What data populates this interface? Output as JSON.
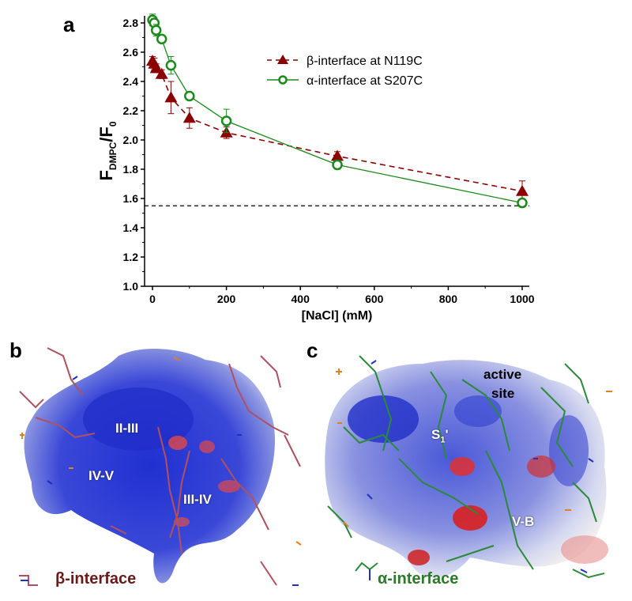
{
  "panels": {
    "a": "a",
    "b": "b",
    "c": "c"
  },
  "chart_data": {
    "type": "line",
    "title": "",
    "xlabel": "[NaCl] (mM)",
    "ylabel": "F_DMPC/F_0",
    "ylabel_main": "F",
    "ylabel_sub1": "DMPC",
    "ylabel_mid": "/F",
    "ylabel_sub2": "0",
    "xlim": [
      -20,
      1020
    ],
    "ylim": [
      1.0,
      2.9
    ],
    "xticks": [
      0,
      200,
      400,
      600,
      800,
      1000
    ],
    "yticks": [
      1.0,
      1.2,
      1.4,
      1.6,
      1.8,
      2.0,
      2.2,
      2.4,
      2.6,
      2.8
    ],
    "xtick_labels": [
      "0",
      "200",
      "400",
      "600",
      "800",
      "1000"
    ],
    "ytick_labels": [
      "1.0",
      "1.2",
      "1.4",
      "1.6",
      "1.8",
      "2.0",
      "2.2",
      "2.4",
      "2.6",
      "2.8"
    ],
    "grid": false,
    "legend_position": "upper right",
    "reference_line": {
      "y": 1.55,
      "style": "dashed",
      "color": "#000000"
    },
    "series": [
      {
        "name": "β-interface at N119C",
        "color": "#8b0000",
        "marker": "filled-triangle",
        "line": "dashed",
        "x": [
          0,
          5,
          10,
          25,
          50,
          100,
          200,
          500,
          1000
        ],
        "y": [
          2.54,
          2.52,
          2.49,
          2.45,
          2.29,
          2.15,
          2.05,
          1.89,
          1.65
        ],
        "err": [
          0.03,
          0.04,
          0.03,
          0.03,
          0.11,
          0.07,
          0.04,
          0.03,
          0.07
        ]
      },
      {
        "name": "α-interface at S207C",
        "color": "#1a8a1a",
        "marker": "open-circle",
        "line": "solid",
        "x": [
          0,
          5,
          10,
          25,
          50,
          100,
          200,
          500,
          1000
        ],
        "y": [
          2.82,
          2.8,
          2.75,
          2.69,
          2.51,
          2.3,
          2.13,
          1.83,
          1.57
        ],
        "err": [
          0.04,
          0.03,
          0.04,
          0.02,
          0.06,
          0.01,
          0.08,
          0.03,
          0.02
        ]
      }
    ]
  },
  "panel_b": {
    "region_labels": [
      "II-III",
      "IV-V",
      "III-IV"
    ],
    "interface_label": "β-interface",
    "interface_color": "#6b1a1a"
  },
  "panel_c": {
    "region_labels": [
      "active",
      "site",
      "S",
      "1",
      "'",
      "V-B"
    ],
    "interface_label": "α-interface",
    "interface_color": "#2a7a2a"
  }
}
